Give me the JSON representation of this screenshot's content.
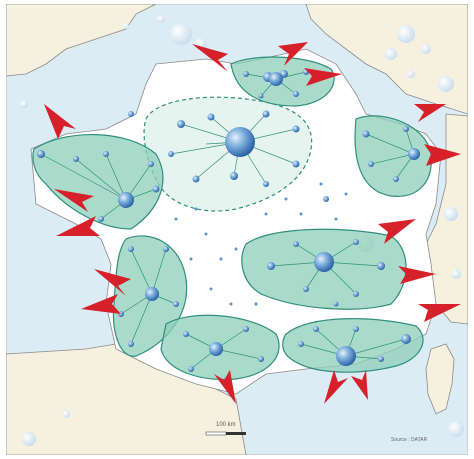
{
  "map": {
    "scale_bar_label": "100 km",
    "credit_text": "Source : DATAR",
    "colors": {
      "sea": "#dcecf5",
      "land_outside": "#f6f1df",
      "france": "#ffffff",
      "zone_fill": "#8ecfb8",
      "zone_stroke": "#2f8f7d",
      "arrow": "#d6202a",
      "node": "#5b95cf",
      "border": "#6f6f6f"
    },
    "hubs": [
      {
        "name": "paris-basin",
        "label": ""
      },
      {
        "name": "channel-coast",
        "label": ""
      },
      {
        "name": "north-east",
        "label": ""
      },
      {
        "name": "west-brittany",
        "label": ""
      },
      {
        "name": "atlantic",
        "label": ""
      },
      {
        "name": "south-west",
        "label": ""
      },
      {
        "name": "centre-east",
        "label": ""
      },
      {
        "name": "mediterranean",
        "label": ""
      }
    ],
    "arrow_count": 18
  }
}
